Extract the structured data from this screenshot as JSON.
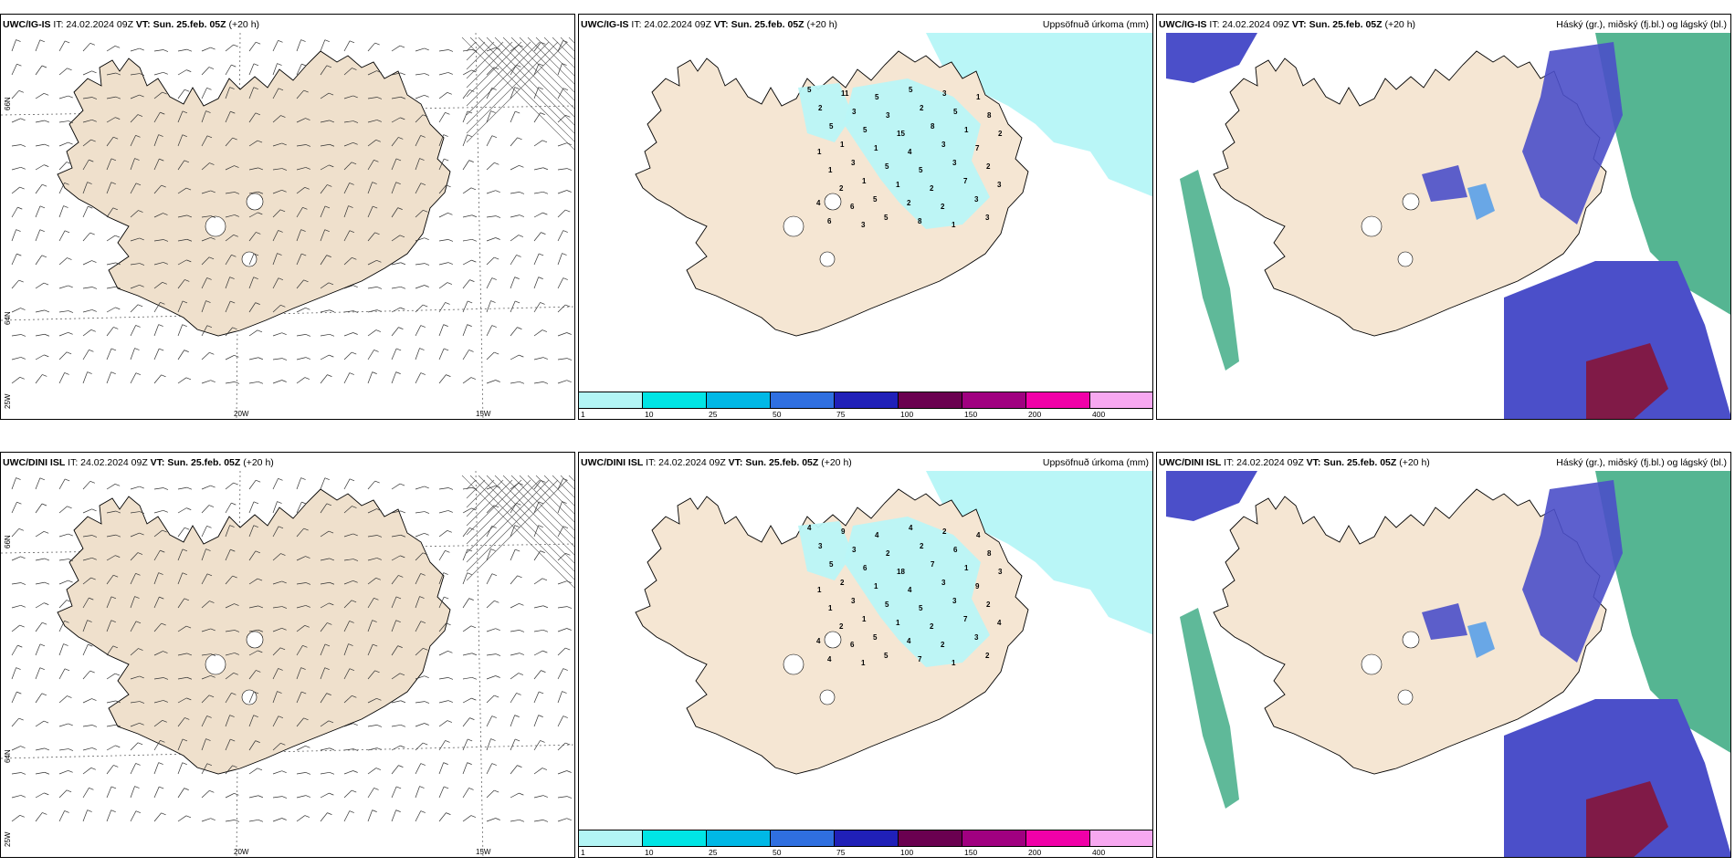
{
  "rows": [
    {
      "model": "UWC/IG-IS",
      "panels": [
        {
          "type": "wind",
          "model": "UWC/IG-IS",
          "it": "IT: 24.02.2024 09Z",
          "vt_label": "VT:",
          "vt": "Sun. 25.feb. 05Z",
          "lead": "(+20 h)",
          "title": ""
        },
        {
          "type": "precip",
          "model": "UWC/IG-IS",
          "it": "IT: 24.02.2024 09Z",
          "vt_label": "VT:",
          "vt": "Sun. 25.feb. 05Z",
          "lead": "(+20 h)",
          "title": "Uppsöfnuð úrkoma (mm)"
        },
        {
          "type": "cloud",
          "model": "UWC/IG-IS",
          "it": "IT: 24.02.2024 09Z",
          "vt_label": "VT:",
          "vt": "Sun. 25.feb. 05Z",
          "lead": "(+20 h)",
          "title": "Háský (gr.), miðský (fj.bl.) og lágský (bl.)"
        }
      ],
      "precip_values": [
        "5",
        "11",
        "5",
        "5",
        "3",
        "1",
        "2",
        "3",
        "3",
        "2",
        "5",
        "8",
        "5",
        "5",
        "15",
        "8",
        "1",
        "2",
        "1",
        "1",
        "4",
        "3",
        "7",
        "1",
        "3",
        "5",
        "5",
        "3",
        "2",
        "1",
        "1",
        "1",
        "2",
        "7",
        "3",
        "2",
        "5",
        "2",
        "2",
        "3",
        "4",
        "6",
        "5",
        "8",
        "1",
        "3",
        "6",
        "3"
      ]
    },
    {
      "model": "UWC/DINI ISL",
      "panels": [
        {
          "type": "wind",
          "model": "UWC/DINI ISL",
          "it": "IT: 24.02.2024 09Z",
          "vt_label": "VT:",
          "vt": "Sun. 25.feb. 05Z",
          "lead": "(+20 h)",
          "title": ""
        },
        {
          "type": "precip",
          "model": "UWC/DINI ISL",
          "it": "IT: 24.02.2024 09Z",
          "vt_label": "VT:",
          "vt": "Sun. 25.feb. 05Z",
          "lead": "(+20 h)",
          "title": "Uppsöfnuð úrkoma (mm)"
        },
        {
          "type": "cloud",
          "model": "UWC/DINI ISL",
          "it": "IT: 24.02.2024 09Z",
          "vt_label": "VT:",
          "vt": "Sun. 25.feb. 05Z",
          "lead": "(+20 h)",
          "title": "Háský (gr.), miðský (fj.bl.) og lágský (bl.)"
        }
      ],
      "precip_values": [
        "4",
        "9",
        "4",
        "4",
        "2",
        "4",
        "3",
        "3",
        "2",
        "2",
        "6",
        "8",
        "5",
        "6",
        "18",
        "7",
        "1",
        "3",
        "2",
        "1",
        "4",
        "3",
        "9",
        "1",
        "3",
        "5",
        "5",
        "3",
        "2",
        "1",
        "1",
        "1",
        "2",
        "7",
        "4",
        "2",
        "5",
        "4",
        "2",
        "3",
        "4",
        "6",
        "5",
        "7",
        "1",
        "2",
        "4",
        "1"
      ]
    }
  ],
  "grid_labels": {
    "lat_66": "66N",
    "lat_64": "64N",
    "lon_20": "20W",
    "lon_15": "15W",
    "lon_25": "25W"
  },
  "colorbar": {
    "labels": [
      "1",
      "10",
      "25",
      "50",
      "75",
      "100",
      "150",
      "200",
      "400"
    ],
    "colors": [
      "#b3f5f5",
      "#00e5e5",
      "#00b8e6",
      "#2f6fe0",
      "#2020b8",
      "#6a0050",
      "#a00080",
      "#f000a8",
      "#f7a8f0"
    ]
  },
  "colors": {
    "land": "#f5e6d3",
    "land_wind": "#efe0cc",
    "precip_light": "#b9f6f7",
    "cloud_mid": "#4b4fc9",
    "cloud_low": "#5aa0e8",
    "cloud_high": "#2aa277",
    "cloud_convective": "#8a1030"
  }
}
